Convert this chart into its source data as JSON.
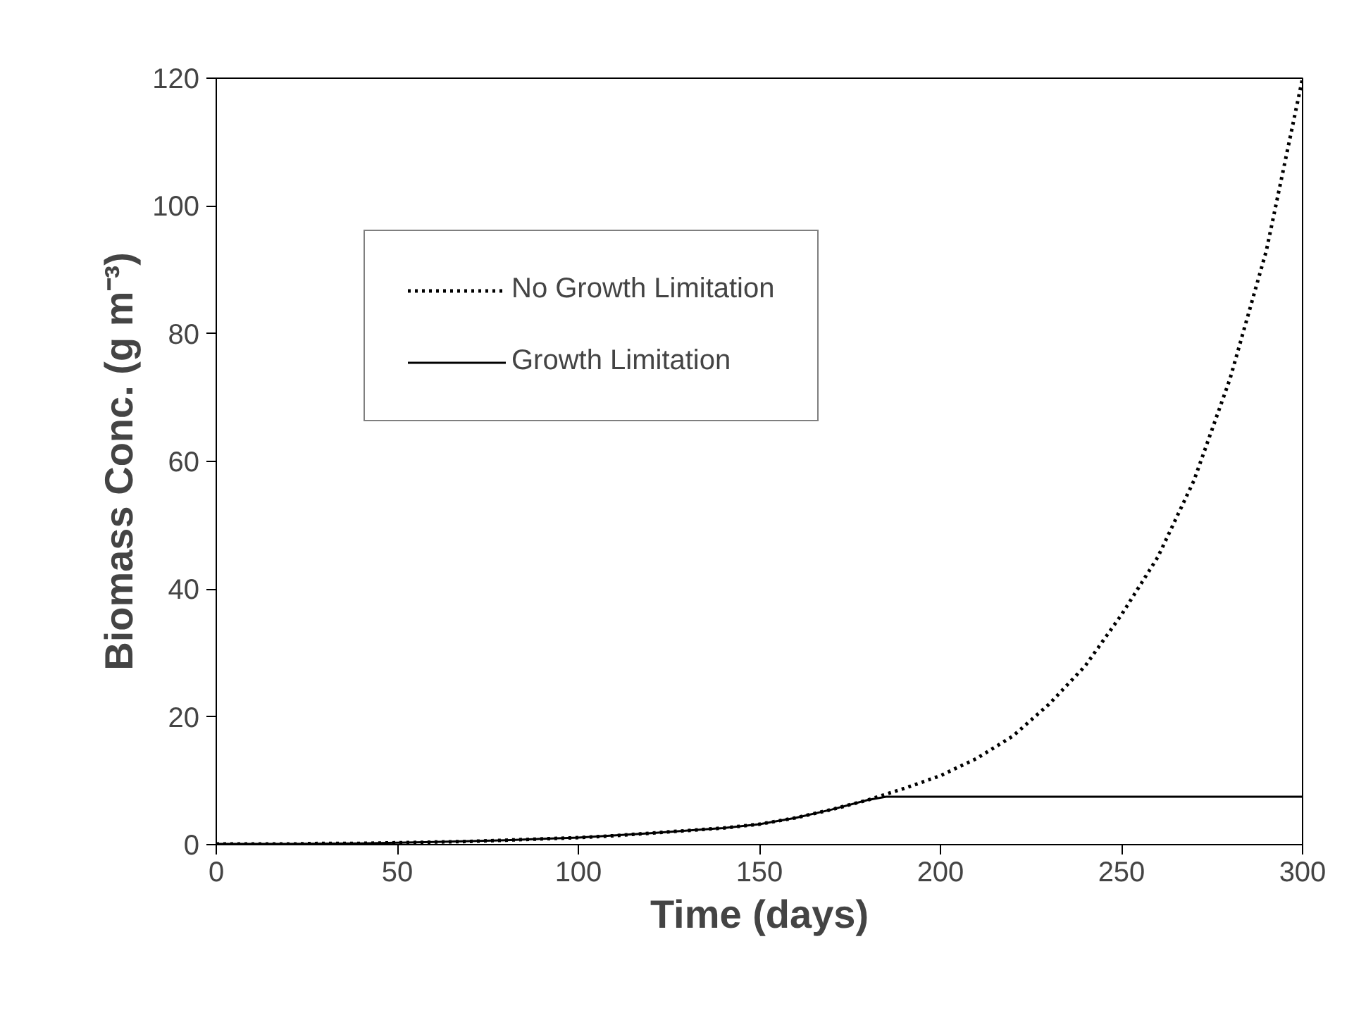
{
  "chart_data": {
    "type": "line",
    "xlabel": "Time (days)",
    "ylabel": "Biomass Conc. (g m⁻³)",
    "xlim": [
      0,
      300
    ],
    "ylim": [
      0,
      120
    ],
    "xticks": [
      0,
      50,
      100,
      150,
      200,
      250,
      300
    ],
    "yticks": [
      0,
      20,
      40,
      60,
      80,
      100,
      120
    ],
    "grid": false,
    "legend": "top left",
    "marker": "none",
    "series": [
      {
        "name": "No Growth Limitation",
        "color": "#000000",
        "line_style": "dotted",
        "x": [
          0,
          10,
          20,
          30,
          40,
          50,
          60,
          70,
          80,
          90,
          100,
          110,
          120,
          130,
          140,
          150,
          160,
          170,
          180,
          190,
          200,
          210,
          220,
          230,
          240,
          250,
          260,
          270,
          280,
          290,
          300
        ],
        "values": [
          0.1,
          0.1,
          0.1,
          0.2,
          0.2,
          0.3,
          0.4,
          0.5,
          0.7,
          0.9,
          1.1,
          1.4,
          1.8,
          2.2,
          2.6,
          3.2,
          4.2,
          5.5,
          7,
          8.8,
          10.8,
          13.5,
          17,
          22,
          28,
          36,
          45,
          57,
          73,
          93,
          120
        ]
      },
      {
        "name": "Growth Limitation",
        "color": "#000000",
        "line_style": "solid",
        "x": [
          0,
          20,
          40,
          60,
          80,
          100,
          120,
          140,
          150,
          160,
          170,
          180,
          185,
          200,
          250,
          300
        ],
        "values": [
          0.1,
          0.1,
          0.2,
          0.4,
          0.7,
          1.1,
          1.8,
          2.6,
          3.2,
          4.2,
          5.5,
          7,
          7.5,
          7.5,
          7.5,
          7.5
        ]
      }
    ]
  }
}
